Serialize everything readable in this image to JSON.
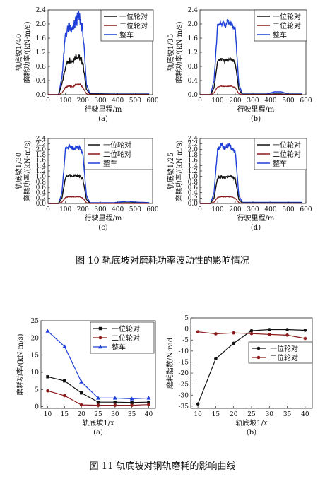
{
  "figure10": {
    "caption": "图 10   轨底坡对磨耗功率波动性的影响情况",
    "xlabel": "行驶里程/m",
    "ylabel": "磨耗功率/(kN·m/s)",
    "x_ticks": [
      "0",
      "100",
      "200",
      "300",
      "400",
      "500",
      "600"
    ],
    "y_ticks": [
      "0.0",
      "0.2",
      "0.4",
      "0.6",
      "0.8",
      "1.0",
      "1.2",
      "1.4",
      "1.6",
      "1.8",
      "2.0",
      "2.2",
      "2.4"
    ],
    "legend": [
      "一位轮对",
      "二位轮对",
      "整车"
    ],
    "colors": {
      "wheelset1": "#111111",
      "wheelset2": "#8b1a1a",
      "vehicle": "#1f3fd6"
    },
    "panels": [
      {
        "label": "(a)",
        "slope": "轨底坡1/40"
      },
      {
        "label": "(b)",
        "slope": "轨底坡1/35"
      },
      {
        "label": "(c)",
        "slope": "轨底坡1/30"
      },
      {
        "label": "(d)",
        "slope": "轨底坡1/25"
      }
    ]
  },
  "figure11": {
    "caption": "图 11   轨底坡对钢轨磨耗的影响曲线",
    "xlabel": "轨底坡1/x",
    "panels": [
      {
        "label": "(a)",
        "ylabel": "磨耗功率/(kN·m/s)"
      },
      {
        "label": "(b)",
        "ylabel": "磨耗指数/N·rad"
      }
    ]
  },
  "chart_data": [
    {
      "type": "line",
      "panel": "10(a)",
      "x": [
        0,
        60,
        80,
        100,
        120,
        140,
        160,
        180,
        200,
        220,
        240,
        400,
        580
      ],
      "series": [
        {
          "name": "一位轮对",
          "values": [
            0,
            0,
            0.3,
            0.8,
            1.0,
            0.95,
            1.1,
            1.05,
            0.9,
            0.15,
            0.02,
            0.01,
            0.01
          ]
        },
        {
          "name": "二位轮对",
          "values": [
            0,
            0,
            0.05,
            0.2,
            0.25,
            0.22,
            0.28,
            0.3,
            0.2,
            0.03,
            0.0,
            0.0,
            0.0
          ]
        },
        {
          "name": "整车",
          "values": [
            0,
            0,
            0.5,
            1.7,
            1.9,
            1.8,
            2.1,
            2.2,
            1.8,
            0.3,
            0.03,
            0.02,
            0.02
          ]
        }
      ],
      "xlim": [
        0,
        600
      ],
      "ylim": [
        0,
        2.4
      ]
    },
    {
      "type": "line",
      "panel": "10(b)",
      "x": [
        0,
        60,
        80,
        100,
        120,
        140,
        160,
        180,
        200,
        220,
        240,
        380,
        420,
        460,
        500,
        580
      ],
      "series": [
        {
          "name": "一位轮对",
          "values": [
            0,
            0,
            0.2,
            0.95,
            1.0,
            0.95,
            1.0,
            1.0,
            0.9,
            0.15,
            0.01,
            0.01,
            0.02,
            0.02,
            0.01,
            0.01
          ]
        },
        {
          "name": "二位轮对",
          "values": [
            0,
            0,
            0.05,
            0.22,
            0.24,
            0.23,
            0.24,
            0.24,
            0.2,
            0.03,
            0.0,
            0.0,
            0.0,
            0.0,
            0.0,
            0.0
          ]
        },
        {
          "name": "整车",
          "values": [
            0,
            0,
            0.4,
            1.95,
            2.05,
            1.95,
            2.05,
            2.0,
            1.85,
            0.3,
            0.02,
            0.02,
            0.08,
            0.08,
            0.02,
            0.02
          ]
        }
      ],
      "xlim": [
        0,
        600
      ],
      "ylim": [
        0,
        2.4
      ]
    },
    {
      "type": "line",
      "panel": "10(c)",
      "x": [
        0,
        60,
        80,
        100,
        120,
        140,
        160,
        180,
        200,
        220,
        240,
        380,
        420,
        460,
        500,
        580
      ],
      "series": [
        {
          "name": "一位轮对",
          "values": [
            0,
            0,
            0.2,
            0.95,
            1.05,
            1.0,
            1.05,
            1.0,
            0.9,
            0.15,
            0.01,
            0.01,
            0.02,
            0.03,
            0.02,
            0.01
          ]
        },
        {
          "name": "二位轮对",
          "values": [
            0,
            0,
            0.05,
            0.22,
            0.25,
            0.24,
            0.25,
            0.24,
            0.2,
            0.03,
            0.0,
            0.0,
            0.0,
            0.0,
            0.0,
            0.0
          ]
        },
        {
          "name": "整车",
          "values": [
            0,
            0,
            0.4,
            2.0,
            2.1,
            2.05,
            2.1,
            2.05,
            1.85,
            0.3,
            0.03,
            0.03,
            0.06,
            0.08,
            0.05,
            0.03
          ]
        }
      ],
      "xlim": [
        0,
        600
      ],
      "ylim": [
        0,
        2.4
      ]
    },
    {
      "type": "line",
      "panel": "10(d)",
      "x": [
        0,
        60,
        80,
        100,
        120,
        140,
        160,
        180,
        200,
        220,
        240,
        580
      ],
      "series": [
        {
          "name": "一位轮对",
          "values": [
            0,
            0,
            0.2,
            0.95,
            1.0,
            0.95,
            1.0,
            1.0,
            0.9,
            0.15,
            0.02,
            0.02
          ]
        },
        {
          "name": "二位轮对",
          "values": [
            0,
            0,
            0.05,
            0.22,
            0.25,
            0.24,
            0.25,
            0.24,
            0.2,
            0.03,
            0.01,
            0.01
          ]
        },
        {
          "name": "整车",
          "values": [
            0,
            0,
            0.4,
            2.0,
            2.15,
            2.05,
            2.15,
            2.05,
            1.9,
            0.3,
            0.04,
            0.04
          ]
        }
      ],
      "xlim": [
        0,
        600
      ],
      "ylim": [
        0,
        2.4
      ]
    },
    {
      "type": "line",
      "panel": "11(a)",
      "x": [
        10,
        15,
        20,
        25,
        30,
        35,
        40
      ],
      "x_ticks": [
        "10",
        "15",
        "20",
        "25",
        "30",
        "35",
        "40"
      ],
      "y_ticks": [
        "0",
        "5",
        "10",
        "15",
        "20",
        "25"
      ],
      "series": [
        {
          "name": "一位轮对",
          "values": [
            8.7,
            7.5,
            4.0,
            1.3,
            1.3,
            1.2,
            1.3
          ]
        },
        {
          "name": "二位轮对",
          "values": [
            4.6,
            3.2,
            0.5,
            0.4,
            0.4,
            0.4,
            0.6
          ]
        },
        {
          "name": "整车",
          "values": [
            22.0,
            17.5,
            7.2,
            2.5,
            2.5,
            2.3,
            2.5
          ]
        }
      ],
      "xlim": [
        8,
        42
      ],
      "ylim": [
        -0.5,
        25
      ]
    },
    {
      "type": "line",
      "panel": "11(b)",
      "x": [
        10,
        15,
        20,
        25,
        30,
        35,
        40
      ],
      "x_ticks": [
        "10",
        "15",
        "20",
        "25",
        "30",
        "35",
        "40"
      ],
      "y_ticks": [
        "5",
        "0",
        "-5",
        "-10",
        "-15",
        "-20",
        "-25",
        "-30",
        "-35"
      ],
      "series": [
        {
          "name": "一位轮对",
          "values": [
            -34.0,
            -13.5,
            -6.5,
            -0.8,
            -0.3,
            -0.3,
            -0.6
          ]
        },
        {
          "name": "二位轮对",
          "values": [
            -1.3,
            -2.2,
            -1.8,
            -2.1,
            -2.5,
            -2.8,
            -4.3
          ]
        }
      ],
      "xlim": [
        8,
        42
      ],
      "ylim": [
        -36,
        5
      ]
    }
  ]
}
